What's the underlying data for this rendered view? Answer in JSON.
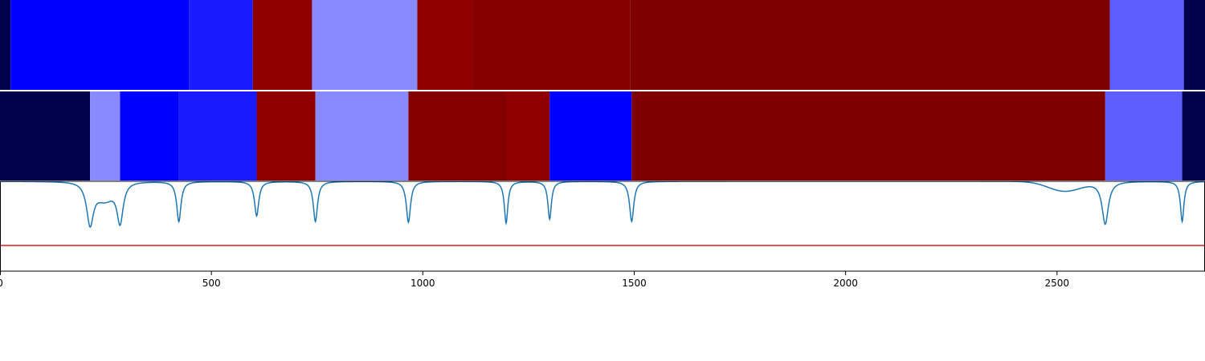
{
  "chart_data": {
    "type": "heatmap",
    "title": "",
    "xlabel": "",
    "ylabel": "",
    "xlim": [
      0,
      2850
    ],
    "grid": false,
    "legend": "none",
    "x_ticks": [
      {
        "value": 0,
        "label": "0"
      },
      {
        "value": 500,
        "label": "500"
      },
      {
        "value": 1000,
        "label": "1000"
      },
      {
        "value": 1500,
        "label": "1500"
      },
      {
        "value": 2000,
        "label": "2000"
      },
      {
        "value": 2500,
        "label": "2500"
      }
    ],
    "segment_rows": [
      {
        "segments": [
          {
            "start": 0,
            "end": 25,
            "color": "#00004d"
          },
          {
            "start": 25,
            "end": 447,
            "color": "#0000ff"
          },
          {
            "start": 447,
            "end": 598,
            "color": "#1a1aff"
          },
          {
            "start": 598,
            "end": 738,
            "color": "#8e0000"
          },
          {
            "start": 738,
            "end": 987,
            "color": "#8a8aff"
          },
          {
            "start": 987,
            "end": 1120,
            "color": "#8e0000"
          },
          {
            "start": 1120,
            "end": 1490,
            "color": "#840000"
          },
          {
            "start": 1490,
            "end": 2625,
            "color": "#7f0000"
          },
          {
            "start": 2625,
            "end": 2800,
            "color": "#5e5eff"
          },
          {
            "start": 2800,
            "end": 2850,
            "color": "#00004d"
          }
        ]
      },
      {
        "segments": [
          {
            "start": 0,
            "end": 213,
            "color": "#00004d"
          },
          {
            "start": 213,
            "end": 284,
            "color": "#8a8aff"
          },
          {
            "start": 284,
            "end": 423,
            "color": "#0000ff"
          },
          {
            "start": 423,
            "end": 607,
            "color": "#1a1aff"
          },
          {
            "start": 607,
            "end": 746,
            "color": "#8e0000"
          },
          {
            "start": 746,
            "end": 966,
            "color": "#8a8aff"
          },
          {
            "start": 966,
            "end": 1197,
            "color": "#840000"
          },
          {
            "start": 1197,
            "end": 1300,
            "color": "#8e0000"
          },
          {
            "start": 1300,
            "end": 1494,
            "color": "#0000ff"
          },
          {
            "start": 1494,
            "end": 2614,
            "color": "#7f0000"
          },
          {
            "start": 2614,
            "end": 2796,
            "color": "#5e5eff"
          },
          {
            "start": 2796,
            "end": 2850,
            "color": "#00004d"
          }
        ]
      }
    ],
    "line_series": {
      "color": "#1f77b4",
      "baseline": 1.0,
      "dips": [
        {
          "x": 213,
          "depth": 0.52,
          "width": 10
        },
        {
          "x": 284,
          "depth": 0.5,
          "width": 9
        },
        {
          "x": 423,
          "depth": 0.5,
          "width": 6
        },
        {
          "x": 607,
          "depth": 0.43,
          "width": 6
        },
        {
          "x": 746,
          "depth": 0.5,
          "width": 6
        },
        {
          "x": 966,
          "depth": 0.51,
          "width": 6
        },
        {
          "x": 1197,
          "depth": 0.52,
          "width": 5
        },
        {
          "x": 1300,
          "depth": 0.47,
          "width": 5
        },
        {
          "x": 1494,
          "depth": 0.5,
          "width": 6
        },
        {
          "x": 2614,
          "depth": 0.53,
          "width": 9
        },
        {
          "x": 2796,
          "depth": 0.5,
          "width": 5
        }
      ],
      "broad_dips": [
        {
          "x": 248,
          "depth": 0.2,
          "width": 28
        },
        {
          "x": 2518,
          "depth": 0.12,
          "width": 55
        }
      ]
    },
    "threshold": {
      "value": 0.2,
      "color": "#e41a1c"
    },
    "line_ylim": [
      -0.12,
      1.0
    ]
  }
}
